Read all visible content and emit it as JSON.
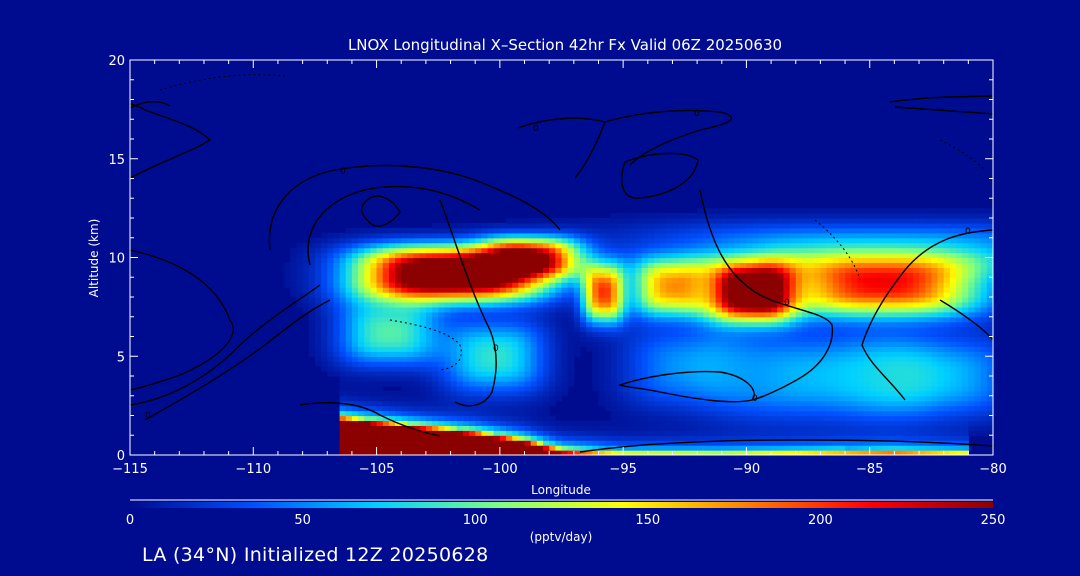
{
  "chart_data": {
    "type": "heatmap",
    "title": "LNOX Longitudinal X–Section 42hr  Fx Valid 06Z 20250630",
    "xlabel": "Longitude",
    "ylabel": "Altitude (km)",
    "xlim": [
      -115,
      -80
    ],
    "ylim": [
      0,
      20
    ],
    "x_ticks": [
      "−115",
      "−110",
      "−105",
      "−100",
      "−95",
      "−90",
      "−85",
      "−80"
    ],
    "y_ticks": [
      "0",
      "5",
      "10",
      "15",
      "20"
    ],
    "grid": false,
    "colorbar": {
      "min": 0,
      "max": 250,
      "ticks": [
        "0",
        "50",
        "100",
        "150",
        "200",
        "250"
      ],
      "label": "(pptv/day)",
      "placement": "bottom"
    },
    "contour_label": "0",
    "lnox_features": [
      {
        "lon_center": -102,
        "lon_halfwidth": 3.6,
        "alt_center": 9.2,
        "alt_halfwidth": 1.3,
        "peak": 320
      },
      {
        "lon_center": -98.7,
        "lon_halfwidth": 1.9,
        "alt_center": 10.0,
        "alt_halfwidth": 1.0,
        "peak": 180
      },
      {
        "lon_center": -104.5,
        "lon_halfwidth": 2.0,
        "alt_center": 6.2,
        "alt_halfwidth": 1.6,
        "peak": 95
      },
      {
        "lon_center": -100.2,
        "lon_halfwidth": 2.0,
        "alt_center": 5.0,
        "alt_halfwidth": 1.8,
        "peak": 85
      },
      {
        "lon_center": -95.8,
        "lon_halfwidth": 0.8,
        "alt_center": 8.2,
        "alt_halfwidth": 1.4,
        "peak": 190
      },
      {
        "lon_center": -93.0,
        "lon_halfwidth": 1.6,
        "alt_center": 8.5,
        "alt_halfwidth": 1.4,
        "peak": 170
      },
      {
        "lon_center": -89.8,
        "lon_halfwidth": 1.6,
        "alt_center": 8.3,
        "alt_halfwidth": 1.4,
        "peak": 300
      },
      {
        "lon_center": -84.5,
        "lon_halfwidth": 4.0,
        "alt_center": 8.6,
        "alt_halfwidth": 1.5,
        "peak": 210
      },
      {
        "lon_center": -87.0,
        "lon_halfwidth": 4.0,
        "alt_center": 4.0,
        "alt_halfwidth": 2.2,
        "peak": 65
      },
      {
        "lon_center": -82.0,
        "lon_halfwidth": 3.0,
        "alt_center": 4.0,
        "alt_halfwidth": 2.0,
        "peak": 60
      },
      {
        "lon_center": -92.5,
        "lon_halfwidth": 2.5,
        "alt_center": 4.5,
        "alt_halfwidth": 2.0,
        "peak": 50
      },
      {
        "lon_center": -85.0,
        "lon_halfwidth": 9.0,
        "alt_center": 10.5,
        "alt_halfwidth": 1.3,
        "peak": 60
      }
    ],
    "surface_band": [
      {
        "lon": -106.5,
        "alt": 2.05,
        "value": 300
      },
      {
        "lon": -104,
        "alt": 1.7,
        "value": 300
      },
      {
        "lon": -101,
        "alt": 1.3,
        "value": 300
      },
      {
        "lon": -99,
        "alt": 0.9,
        "value": 300
      },
      {
        "lon": -97.5,
        "alt": 0.45,
        "value": 240
      },
      {
        "lon": -95,
        "alt": 0.35,
        "value": 170
      },
      {
        "lon": -91,
        "alt": 0.25,
        "value": 210
      },
      {
        "lon": -88,
        "alt": 0.35,
        "value": 190
      },
      {
        "lon": -84,
        "alt": 0.4,
        "value": 210
      },
      {
        "lon": -81,
        "alt": 0.4,
        "value": 160
      }
    ]
  },
  "footer": "LA (34°N) Initialized 12Z 20250628",
  "colors": {
    "background": "#000c8f",
    "text": "#ffffff",
    "contour": "#000000",
    "colormap": [
      "#000c8f",
      "#0050ff",
      "#00d0ff",
      "#7fff80",
      "#ffff00",
      "#ff8000",
      "#ff0000",
      "#8b0000"
    ]
  }
}
